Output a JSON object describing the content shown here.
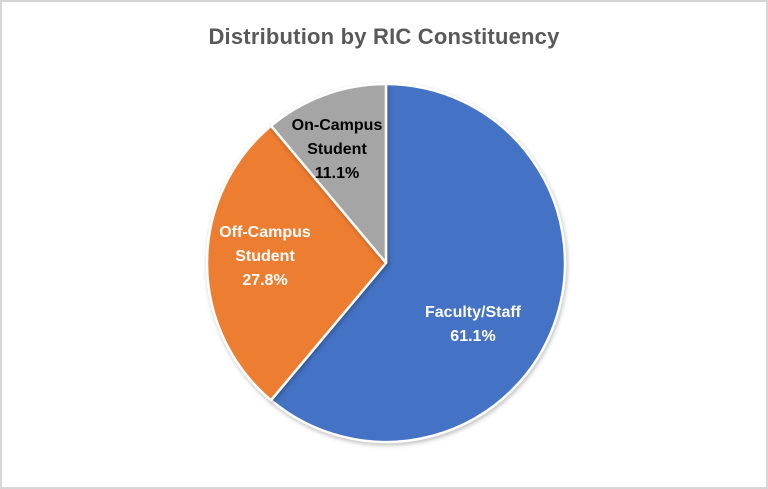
{
  "window": {
    "background": "#FFFFFF",
    "border_color": "#D6D6D6"
  },
  "chart_data": {
    "type": "pie",
    "title": "Distribution by RIC Constituency",
    "title_color": "#595959",
    "start_angle_deg": 0,
    "direction": "clockwise",
    "legend": "none",
    "separator_color": "#FFFFFF",
    "slices": [
      {
        "label": "Faculty/Staff",
        "value_pct": 61.1,
        "pct_label": "61.1%",
        "color": "#4472C4",
        "label_color": "#FFFFFF",
        "label_lines": [
          "Faculty/Staff",
          "61.1%"
        ]
      },
      {
        "label": "Off-Campus Student",
        "value_pct": 27.8,
        "pct_label": "27.8%",
        "color": "#ED7D31",
        "label_color": "#FFFFFF",
        "label_lines": [
          "Off-Campus",
          "Student",
          "27.8%"
        ]
      },
      {
        "label": "On-Campus Student",
        "value_pct": 11.1,
        "pct_label": "11.1%",
        "color": "#A5A5A5",
        "label_color": "#000000",
        "label_lines": [
          "On-Campus",
          "Student",
          "11.1%"
        ]
      }
    ]
  }
}
